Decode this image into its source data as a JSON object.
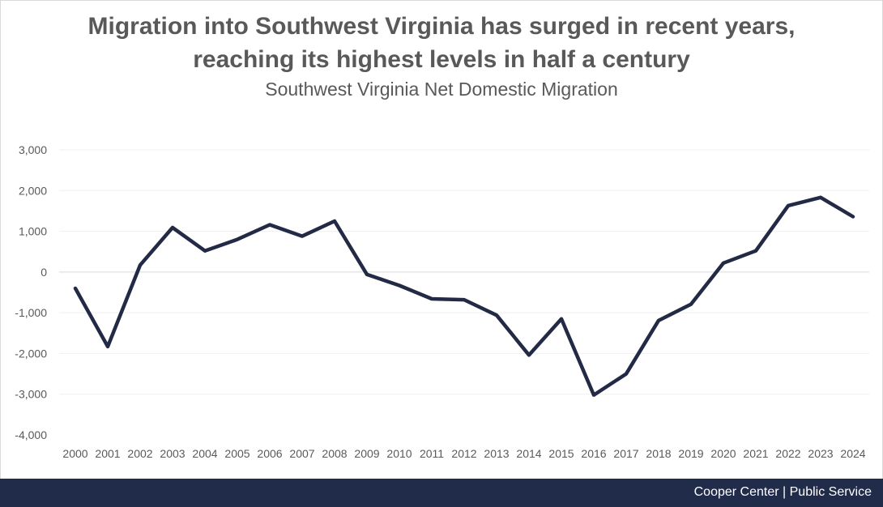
{
  "chart_data": {
    "type": "line",
    "title": "Migration into Southwest Virginia has surged in recent years,",
    "title_line2": "reaching its highest levels in half a century",
    "subtitle": "Southwest Virginia Net Domestic Migration",
    "xlabel": "",
    "ylabel": "",
    "ylim": [
      -4000,
      3000
    ],
    "yticks": [
      3000,
      2000,
      1000,
      0,
      -1000,
      -2000,
      -3000,
      -4000
    ],
    "ytick_labels": [
      "3,000",
      "2,000",
      "1,000",
      "0",
      "-1,000",
      "-2,000",
      "-3,000",
      "-4,000"
    ],
    "categories": [
      "2000",
      "2001",
      "2002",
      "2003",
      "2004",
      "2005",
      "2006",
      "2007",
      "2008",
      "2009",
      "2010",
      "2011",
      "2012",
      "2013",
      "2014",
      "2015",
      "2016",
      "2017",
      "2018",
      "2019",
      "2020",
      "2021",
      "2022",
      "2023",
      "2024"
    ],
    "series": [
      {
        "name": "Net Domestic Migration",
        "color": "#222a45",
        "values": [
          -400,
          -1830,
          170,
          1090,
          520,
          800,
          1160,
          880,
          1250,
          -60,
          -330,
          -660,
          -680,
          -1060,
          -2040,
          -1150,
          -3020,
          -2500,
          -1190,
          -790,
          220,
          520,
          1630,
          1830,
          1360
        ]
      }
    ],
    "grid": true,
    "legend": "none"
  },
  "footer": {
    "text": "Cooper Center | Public Service",
    "background": "#212c4a"
  }
}
